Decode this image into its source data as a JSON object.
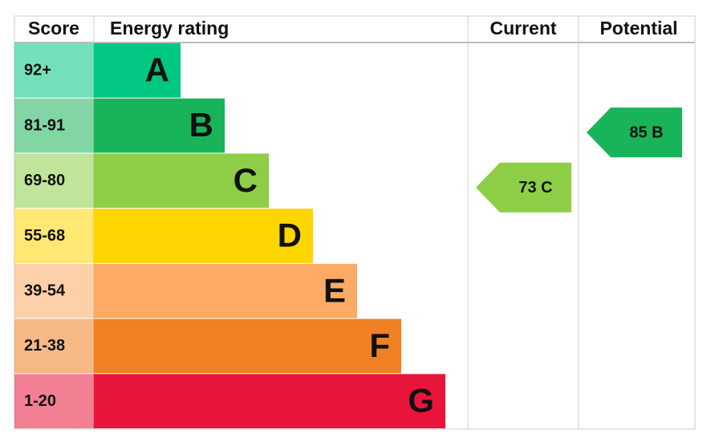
{
  "header": {
    "score": "Score",
    "energy_rating": "Energy rating",
    "current": "Current",
    "potential": "Potential"
  },
  "rows": [
    {
      "score": "92+",
      "rating": "A",
      "color": "#00c781"
    },
    {
      "score": "81-91",
      "rating": "B",
      "color": "#19b459"
    },
    {
      "score": "69-80",
      "rating": "C",
      "color": "#8dce46"
    },
    {
      "score": "55-68",
      "rating": "D",
      "color": "#ffd500"
    },
    {
      "score": "39-54",
      "rating": "E",
      "color": "#fcaa65"
    },
    {
      "score": "21-38",
      "rating": "F",
      "color": "#ef8023"
    },
    {
      "score": "1-20",
      "rating": "G",
      "color": "#e9153b"
    }
  ],
  "current": "73 C",
  "potential": "85 B"
}
